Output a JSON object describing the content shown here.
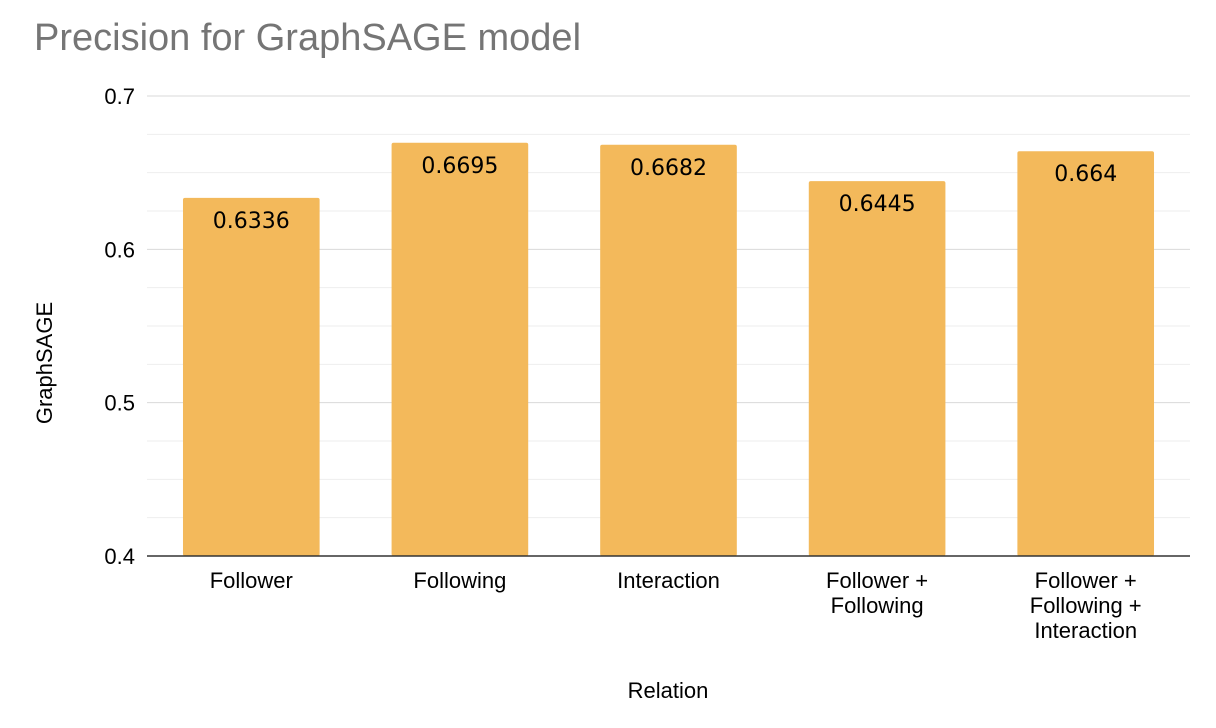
{
  "chart_data": {
    "type": "bar",
    "title": "Precision for GraphSAGE model",
    "xlabel": "Relation",
    "ylabel": "GraphSAGE",
    "categories": [
      [
        "Follower"
      ],
      [
        "Following"
      ],
      [
        "Interaction"
      ],
      [
        "Follower +",
        "Following"
      ],
      [
        "Follower +",
        "Following +",
        "Interaction"
      ]
    ],
    "series": [
      {
        "values": [
          0.6336,
          0.6695,
          0.6682,
          0.6445,
          0.664
        ]
      }
    ],
    "data_labels": [
      "0.6336",
      "0.6695",
      "0.6682",
      "0.6445",
      "0.664"
    ],
    "ylim": [
      0.4,
      0.7
    ],
    "y_ticks": [
      "0.4",
      "0.5",
      "0.6",
      "0.7"
    ],
    "y_tick_values": [
      0.4,
      0.5,
      0.6,
      0.7
    ],
    "minor_gridlines_per_major": 3,
    "grid": true,
    "legend": "none",
    "colors": {
      "bar": "#F3B95B",
      "gridline": "#DADADA",
      "baseline": "#333333"
    }
  }
}
